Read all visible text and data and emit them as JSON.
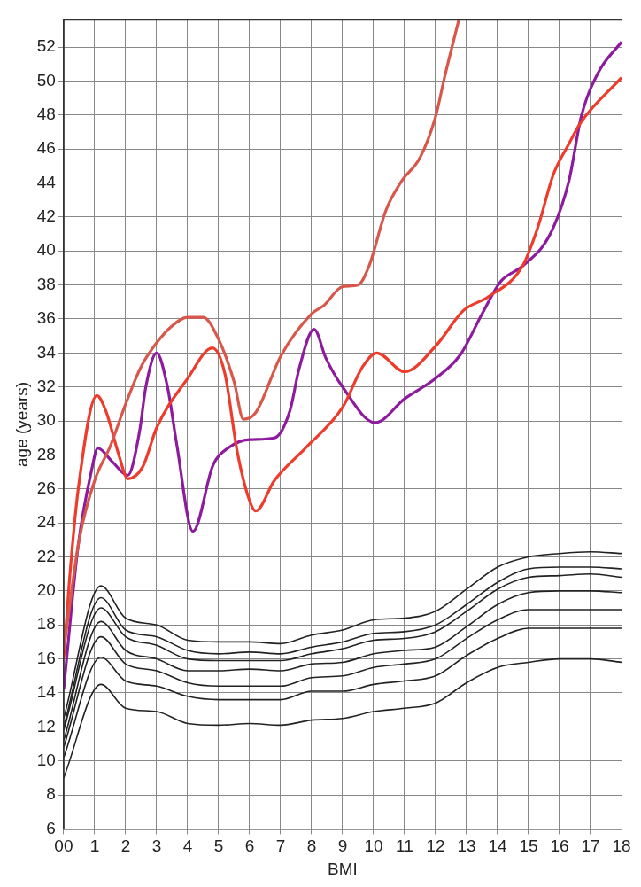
{
  "chart_data": {
    "type": "line",
    "xlabel": "BMI",
    "ylabel": "age (years)",
    "x": [
      0,
      1.2,
      2,
      3,
      4,
      5,
      6,
      7,
      8,
      9,
      10,
      11,
      12,
      13,
      14,
      15,
      16,
      17,
      18
    ],
    "xlim": [
      0,
      18
    ],
    "xticks": [
      {
        "value": 0,
        "label": "00"
      },
      1,
      2,
      3,
      4,
      5,
      6,
      7,
      8,
      9,
      10,
      11,
      12,
      13,
      14,
      15,
      16,
      17,
      18
    ],
    "ylim": [
      6,
      53.6
    ],
    "yticks": [
      6,
      8,
      10,
      12,
      14,
      16,
      18,
      20,
      22,
      24,
      26,
      28,
      30,
      32,
      34,
      36,
      38,
      40,
      42,
      44,
      46,
      48,
      50,
      52
    ],
    "grid": true,
    "legend": false,
    "series": [
      {
        "color": "#d9574a",
        "x": [
          0,
          0.5,
          1,
          1.5,
          2,
          2.5,
          3,
          3.5,
          4,
          4.5,
          5,
          5.5,
          5.8,
          6.2,
          7,
          8,
          8.4,
          9,
          9.5,
          9.85,
          10.4,
          10.9,
          11.5,
          12,
          12.3,
          12.75
        ],
        "values": [
          16.5,
          23,
          26.5,
          28.5,
          31,
          33.2,
          34.6,
          35.6,
          36.1,
          36.1,
          34.8,
          32.3,
          30.1,
          30.5,
          33.8,
          36.3,
          36.8,
          37.9,
          38,
          39.1,
          42.4,
          44.1,
          45.5,
          47.9,
          50.3,
          53.6
        ]
      },
      {
        "color": "#ee3b2b",
        "x": [
          0,
          0.18,
          0.47,
          1.07,
          1.36,
          1.78,
          2.07,
          2.55,
          3,
          4,
          4.8,
          5.2,
          5.6,
          6,
          6.2,
          6.8,
          7.8,
          9,
          9.65,
          10.1,
          11,
          12,
          12.9,
          13.7,
          14.8,
          15.3,
          15.8,
          16.3,
          16.7,
          18
        ],
        "values": [
          16,
          20.5,
          26,
          31.5,
          30.6,
          28,
          26.6,
          27.3,
          29.6,
          32.5,
          34.3,
          32.8,
          28.2,
          25.3,
          24.7,
          26.5,
          28.4,
          30.8,
          33.2,
          34,
          32.9,
          34.4,
          36.5,
          37.3,
          39.1,
          41.4,
          44.5,
          46.3,
          47.6,
          50.2
        ]
      },
      {
        "color": "#8e1b9e",
        "x": [
          0,
          0.47,
          0.9,
          1.1,
          1.57,
          2.07,
          2.45,
          2.65,
          3,
          3.35,
          3.65,
          4.17,
          4.82,
          5.3,
          6,
          6.8,
          7.3,
          7.6,
          8.08,
          8.46,
          9,
          10.05,
          11,
          12,
          12.8,
          13.5,
          14.1,
          14.8,
          15.7,
          16.3,
          16.7,
          17.25,
          18
        ],
        "values": [
          14.2,
          22.7,
          27.1,
          28.4,
          27.6,
          26.8,
          29.4,
          32,
          34,
          32,
          28.6,
          23.5,
          27.4,
          28.4,
          28.9,
          29,
          30.6,
          33.1,
          35.4,
          33.7,
          32,
          29.9,
          31.3,
          32.5,
          33.9,
          36.3,
          38.2,
          39.1,
          41,
          44.1,
          47.9,
          50.5,
          52.3
        ]
      },
      {
        "color": "#222222",
        "values": [
          12.5,
          20.3,
          18.4,
          18,
          17.1,
          17,
          17,
          16.9,
          17.4,
          17.7,
          18.3,
          18.4,
          18.8,
          20.1,
          21.4,
          22,
          22.2,
          22.3,
          22.2
        ]
      },
      {
        "color": "#222222",
        "values": [
          12,
          19.6,
          17.7,
          17.3,
          16.5,
          16.3,
          16.4,
          16.3,
          16.7,
          17,
          17.5,
          17.6,
          18,
          19.2,
          20.5,
          21.3,
          21.4,
          21.4,
          21.3
        ]
      },
      {
        "color": "#222222",
        "values": [
          11.8,
          19,
          17.3,
          16.8,
          16,
          15.9,
          15.9,
          15.9,
          16.3,
          16.6,
          17.1,
          17.2,
          17.6,
          18.8,
          20.1,
          20.8,
          20.9,
          21,
          20.8
        ]
      },
      {
        "color": "#222222",
        "values": [
          11.2,
          18.2,
          16.5,
          16,
          15.3,
          15.3,
          15.4,
          15.3,
          15.7,
          15.8,
          16.3,
          16.5,
          16.7,
          17.9,
          19.2,
          19.9,
          20,
          20,
          19.9
        ]
      },
      {
        "color": "#222222",
        "values": [
          10.8,
          17.3,
          15.7,
          15.3,
          14.6,
          14.4,
          14.4,
          14.4,
          14.9,
          15,
          15.5,
          15.7,
          16,
          17.2,
          18.3,
          18.9,
          18.9,
          18.9,
          18.9
        ]
      },
      {
        "color": "#222222",
        "values": [
          10.2,
          16.1,
          14.7,
          14.4,
          13.8,
          13.6,
          13.6,
          13.6,
          14.1,
          14.1,
          14.5,
          14.7,
          15,
          16.2,
          17.2,
          17.8,
          17.8,
          17.8,
          17.8
        ]
      },
      {
        "color": "#222222",
        "values": [
          9,
          14.5,
          13.1,
          12.9,
          12.2,
          12.1,
          12.2,
          12.1,
          12.4,
          12.5,
          12.9,
          13.1,
          13.4,
          14.6,
          15.5,
          15.8,
          16,
          16,
          15.8
        ]
      }
    ]
  }
}
